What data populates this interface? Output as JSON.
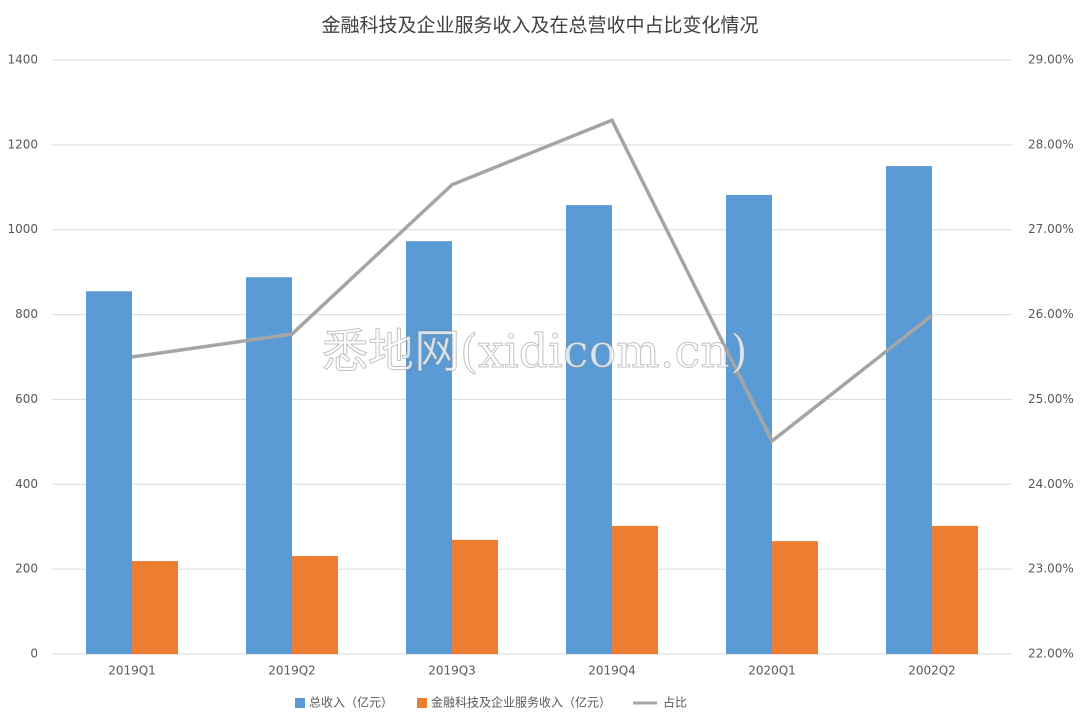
{
  "chart_data": {
    "type": "bar_line",
    "title": "金融科技及企业服务收入及在总营收中占比变化情况",
    "watermark": "悉地网(xidicom.cn)",
    "categories": [
      "2019Q1",
      "2019Q2",
      "2019Q3",
      "2019Q4",
      "2020Q1",
      "2002Q2"
    ],
    "series": [
      {
        "name": "总收入（亿元）",
        "color": "#5b9bd5",
        "type": "bar",
        "values": [
          855,
          888,
          973,
          1058,
          1082,
          1150
        ]
      },
      {
        "name": "金融科技及企业服务收入（亿元）",
        "color": "#ed7d31",
        "type": "bar",
        "values": [
          219,
          231,
          269,
          302,
          266,
          302
        ]
      },
      {
        "name": "占比",
        "color": "#a5a5a5",
        "type": "line",
        "axis": "y2",
        "values": [
          25.5,
          25.77,
          27.53,
          28.29,
          24.51,
          25.99
        ]
      }
    ],
    "ylim": [
      0,
      1400
    ],
    "yticks": [
      0,
      200,
      400,
      600,
      800,
      1000,
      1200,
      1400
    ],
    "y2lim": [
      22,
      29
    ],
    "y2ticks": [
      {
        "value": 22,
        "label": "22.00%"
      },
      {
        "value": 23,
        "label": "23.00%"
      },
      {
        "value": 24,
        "label": "24.00%"
      },
      {
        "value": 25,
        "label": "25.00%"
      },
      {
        "value": 26,
        "label": "26.00%"
      },
      {
        "value": 27,
        "label": "27.00%"
      },
      {
        "value": 28,
        "label": "28.00%"
      },
      {
        "value": 29,
        "label": "29.00%"
      }
    ],
    "grid": true,
    "legend": "bottom"
  }
}
